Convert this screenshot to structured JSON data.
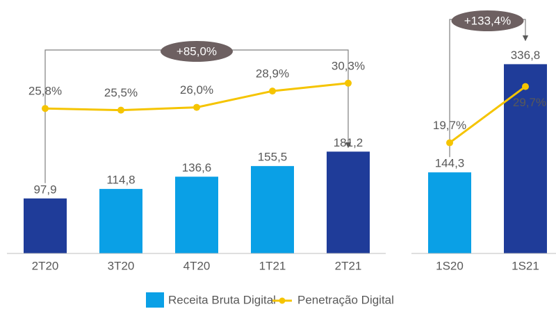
{
  "chart_data": [
    {
      "type": "bar",
      "categories": [
        "2T20",
        "3T20",
        "4T20",
        "1T21",
        "2T21"
      ],
      "series": [
        {
          "name": "Receita Bruta Digital",
          "color": "#0aa0e6",
          "colors": [
            "#1f3c99",
            "#0aa0e6",
            "#0aa0e6",
            "#0aa0e6",
            "#1f3c99"
          ],
          "values": [
            97.9,
            114.8,
            136.6,
            155.5,
            181.2
          ],
          "value_labels": [
            "97,9",
            "114,8",
            "136,6",
            "155,5",
            "181,2"
          ]
        },
        {
          "name": "Penetração Digital",
          "type": "line",
          "axis": "y2",
          "color": "#f5c400",
          "values": [
            25.8,
            25.5,
            26.0,
            28.9,
            30.3
          ],
          "value_labels": [
            "25,8%",
            "25,5%",
            "26,0%",
            "28,9%",
            "30,3%"
          ]
        }
      ],
      "ylim": [
        0,
        430
      ],
      "y2lim": [
        0,
        43
      ],
      "annotation": "+85,0%"
    },
    {
      "type": "bar",
      "categories": [
        "1S20",
        "1S21"
      ],
      "series": [
        {
          "name": "Receita Bruta Digital",
          "color": "#0aa0e6",
          "colors": [
            "#0aa0e6",
            "#1f3c99"
          ],
          "values": [
            144.3,
            336.8
          ],
          "value_labels": [
            "144,3",
            "336,8"
          ]
        },
        {
          "name": "Penetração Digital",
          "type": "line",
          "axis": "y2",
          "color": "#f5c400",
          "values": [
            19.7,
            29.7
          ],
          "value_labels": [
            "19,7%",
            "29,7%"
          ]
        }
      ],
      "ylim": [
        0,
        430
      ],
      "y2lim": [
        0,
        43
      ],
      "annotation": "+133,4%"
    }
  ]
}
